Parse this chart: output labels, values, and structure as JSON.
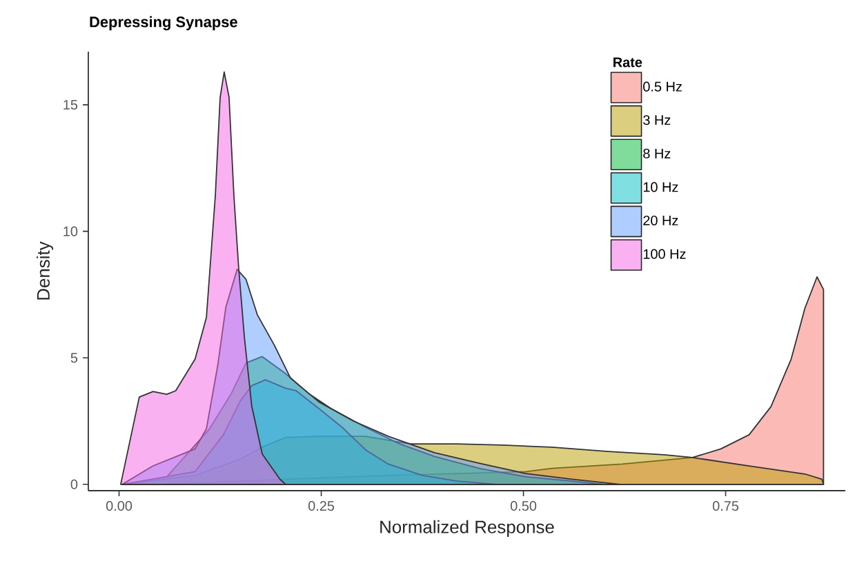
{
  "chart_data": {
    "type": "area",
    "title": "Depressing Synapse",
    "xlabel": "Normalized Response",
    "ylabel": "Density",
    "legend_title": "Rate",
    "legend": "top right",
    "xlim": [
      -0.038,
      0.898
    ],
    "ylim": [
      -0.25,
      17.1
    ],
    "xticks": [
      {
        "value": 0,
        "label": "0.00"
      },
      {
        "value": 0.25,
        "label": "0.25"
      },
      {
        "value": 0.5,
        "label": "0.50"
      },
      {
        "value": 0.75,
        "label": "0.75"
      }
    ],
    "yticks": [
      0,
      5,
      10,
      15
    ],
    "series": [
      {
        "name": "0.5 Hz",
        "color": "#f8766d",
        "x": [
          0.05,
          0.205,
          0.333,
          0.503,
          0.535,
          0.622,
          0.709,
          0.744,
          0.779,
          0.806,
          0.831,
          0.848,
          0.863,
          0.871,
          0.871
        ],
        "values": [
          0,
          0.2,
          0.35,
          0.5,
          0.63,
          0.8,
          1.06,
          1.4,
          1.96,
          3.07,
          4.95,
          6.96,
          8.2,
          7.7,
          0
        ]
      },
      {
        "name": "3 Hz",
        "color": "#b79f00",
        "x": [
          0.004,
          0.094,
          0.15,
          0.179,
          0.206,
          0.247,
          0.305,
          0.36,
          0.418,
          0.475,
          0.535,
          0.605,
          0.674,
          0.709,
          0.779,
          0.848,
          0.869,
          0.871
        ],
        "values": [
          0,
          0.35,
          1.0,
          1.5,
          1.85,
          1.9,
          1.9,
          1.6,
          1.6,
          1.55,
          1.47,
          1.3,
          1.17,
          1.06,
          0.73,
          0.41,
          0.2,
          0
        ]
      },
      {
        "name": "8 Hz",
        "color": "#00ba38",
        "x": [
          0.004,
          0.059,
          0.112,
          0.139,
          0.157,
          0.177,
          0.205,
          0.234,
          0.262,
          0.305,
          0.347,
          0.39,
          0.447,
          0.503,
          0.56,
          0.6
        ],
        "values": [
          0,
          0.3,
          2.2,
          3.6,
          4.8,
          5.05,
          4.4,
          3.6,
          3.0,
          2.25,
          1.6,
          1.1,
          0.62,
          0.3,
          0.13,
          0
        ]
      },
      {
        "name": "10 Hz",
        "color": "#00bfc4",
        "x": [
          0.004,
          0.094,
          0.129,
          0.15,
          0.164,
          0.181,
          0.206,
          0.219,
          0.247,
          0.276,
          0.305,
          0.333,
          0.375,
          0.418,
          0.467
        ],
        "values": [
          0,
          0.5,
          1.96,
          3.3,
          3.9,
          4.13,
          3.8,
          3.7,
          3.0,
          2.25,
          1.36,
          0.8,
          0.35,
          0.13,
          0
        ]
      },
      {
        "name": "20 Hz",
        "color": "#619cff",
        "x": [
          0.004,
          0.042,
          0.094,
          0.108,
          0.122,
          0.132,
          0.146,
          0.157,
          0.171,
          0.192,
          0.212,
          0.247,
          0.29,
          0.333,
          0.39,
          0.447,
          0.503,
          0.56,
          0.62
        ],
        "values": [
          0,
          0.73,
          1.4,
          2.2,
          4.7,
          7.0,
          8.5,
          8.1,
          6.7,
          5.5,
          4.2,
          3.26,
          2.5,
          1.9,
          1.25,
          0.82,
          0.43,
          0.2,
          0
        ]
      },
      {
        "name": "100 Hz",
        "color": "#f564e3",
        "x": [
          0.002,
          0.025,
          0.042,
          0.059,
          0.07,
          0.094,
          0.108,
          0.119,
          0.125,
          0.13,
          0.136,
          0.142,
          0.148,
          0.155,
          0.164,
          0.177,
          0.199,
          0.206
        ],
        "values": [
          0,
          3.45,
          3.67,
          3.56,
          3.7,
          4.95,
          6.6,
          11.4,
          15.3,
          16.3,
          15.3,
          11.4,
          8.5,
          5.8,
          3.1,
          1.2,
          0.2,
          0
        ]
      }
    ]
  }
}
